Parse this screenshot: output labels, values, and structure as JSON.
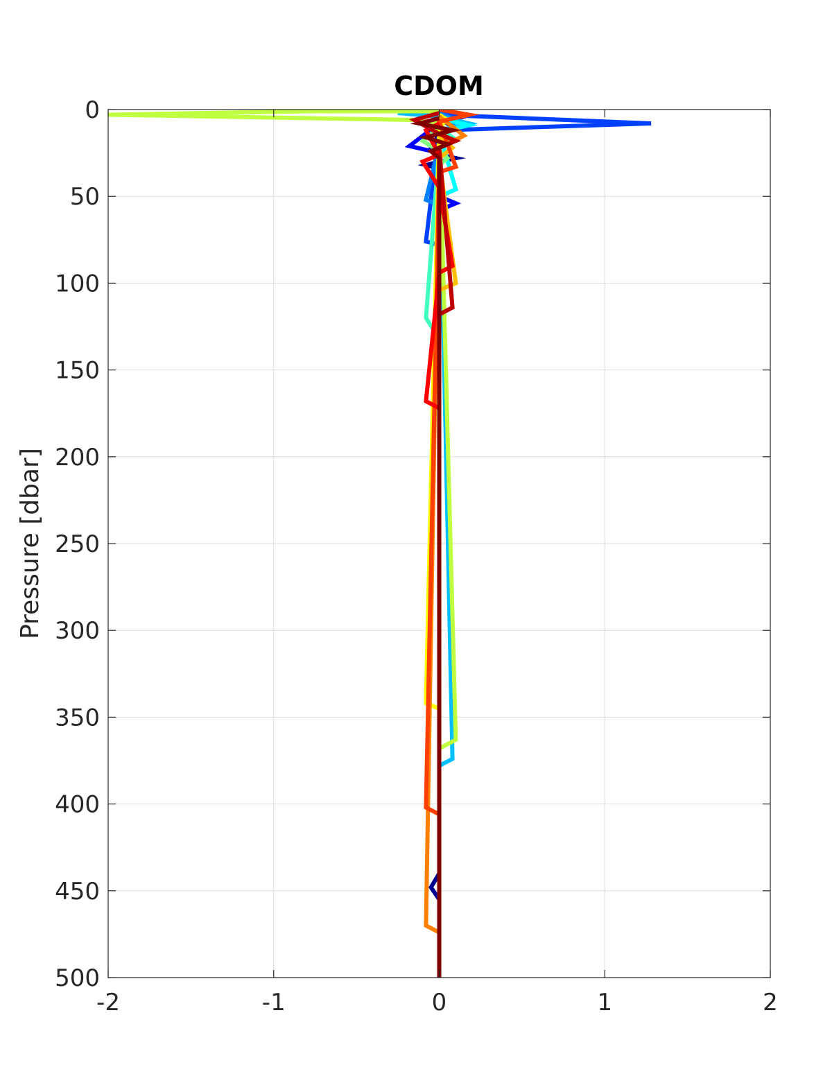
{
  "chart_data": {
    "type": "line",
    "title": "CDOM",
    "xlabel": "",
    "ylabel": "Pressure [dbar]",
    "xlim": [
      -2,
      2
    ],
    "ylim": [
      0,
      500
    ],
    "y_reversed": true,
    "grid": true,
    "x_ticks": [
      -2,
      -1,
      0,
      1,
      2
    ],
    "x_tick_labels": [
      "-2",
      "-1",
      "0",
      "1",
      "2"
    ],
    "y_ticks": [
      0,
      50,
      100,
      150,
      200,
      250,
      300,
      350,
      400,
      450,
      500
    ],
    "y_tick_labels": [
      "0",
      "50",
      "100",
      "150",
      "200",
      "250",
      "300",
      "350",
      "400",
      "450",
      "500"
    ],
    "series": [
      {
        "color": "#00008f",
        "x": [
          0,
          0.05,
          0,
          0.08,
          0,
          -0.05,
          0,
          0.1,
          0,
          -0.08,
          0,
          0,
          -0.05,
          0,
          0
        ],
        "y": [
          0,
          2,
          5,
          10,
          14,
          22,
          26,
          28,
          30,
          32,
          34,
          440,
          448,
          455,
          500
        ]
      },
      {
        "color": "#0000ff",
        "x": [
          0,
          0.15,
          0,
          -0.18,
          0,
          0,
          0.1,
          0,
          0
        ],
        "y": [
          0,
          4,
          8,
          21,
          25,
          50,
          54,
          58,
          500
        ]
      },
      {
        "color": "#0040ff",
        "x": [
          0,
          1.28,
          0,
          -0.08,
          0,
          0
        ],
        "y": [
          3,
          8,
          12,
          76,
          78,
          500
        ]
      },
      {
        "color": "#0080ff",
        "x": [
          0,
          0.1,
          0,
          -0.08,
          0,
          0
        ],
        "y": [
          2,
          6,
          20,
          52,
          55,
          500
        ]
      },
      {
        "color": "#00bfff",
        "x": [
          0,
          -0.25,
          0,
          0.18,
          0,
          0.08,
          0,
          0
        ],
        "y": [
          0,
          2,
          4,
          8,
          12,
          374,
          378,
          500
        ]
      },
      {
        "color": "#00ffff",
        "x": [
          0,
          0.18,
          0,
          0.1,
          0,
          0
        ],
        "y": [
          5,
          9,
          13,
          46,
          50,
          500
        ]
      },
      {
        "color": "#40ffbf",
        "x": [
          0,
          0.08,
          0,
          -0.08,
          0,
          0
        ],
        "y": [
          10,
          16,
          22,
          120,
          132,
          500
        ]
      },
      {
        "color": "#80ff80",
        "x": [
          0,
          -0.1,
          0,
          0.05,
          0,
          0
        ],
        "y": [
          10,
          18,
          24,
          28,
          32,
          500
        ]
      },
      {
        "color": "#bfff40",
        "x": [
          0,
          -0.8,
          -2,
          -0.15,
          0,
          0.1,
          0,
          0
        ],
        "y": [
          1,
          1,
          3,
          6,
          8,
          363,
          368,
          500
        ]
      },
      {
        "color": "#ffff00",
        "x": [
          0,
          0.05,
          0,
          -0.08,
          0,
          0
        ],
        "y": [
          3,
          6,
          10,
          342,
          345,
          500
        ]
      },
      {
        "color": "#ffbf00",
        "x": [
          0,
          0.08,
          0,
          0.1,
          0,
          0
        ],
        "y": [
          15,
          22,
          28,
          100,
          104,
          500
        ]
      },
      {
        "color": "#ff8000",
        "x": [
          0,
          0.15,
          0,
          -0.08,
          0,
          0
        ],
        "y": [
          4,
          15,
          22,
          470,
          474,
          500
        ]
      },
      {
        "color": "#ff4000",
        "x": [
          0,
          0.18,
          0,
          0.1,
          0,
          -0.08,
          0,
          0
        ],
        "y": [
          0,
          3,
          7,
          33,
          36,
          402,
          406,
          500
        ]
      },
      {
        "color": "#ff0000",
        "x": [
          0,
          -0.08,
          0,
          -0.1,
          0,
          0.08,
          0,
          -0.08,
          0,
          0
        ],
        "y": [
          8,
          12,
          26,
          30,
          45,
          90,
          94,
          168,
          172,
          500
        ]
      },
      {
        "color": "#bf0000",
        "x": [
          0,
          -0.15,
          0,
          0.1,
          0,
          0.08,
          0,
          0
        ],
        "y": [
          2,
          6,
          14,
          18,
          22,
          114,
          118,
          500
        ]
      },
      {
        "color": "#800000",
        "x": [
          0,
          -0.12,
          0.08,
          -0.08,
          0.05,
          -0.05,
          0,
          0
        ],
        "y": [
          5,
          8,
          12,
          16,
          20,
          24,
          28,
          500
        ]
      }
    ]
  }
}
